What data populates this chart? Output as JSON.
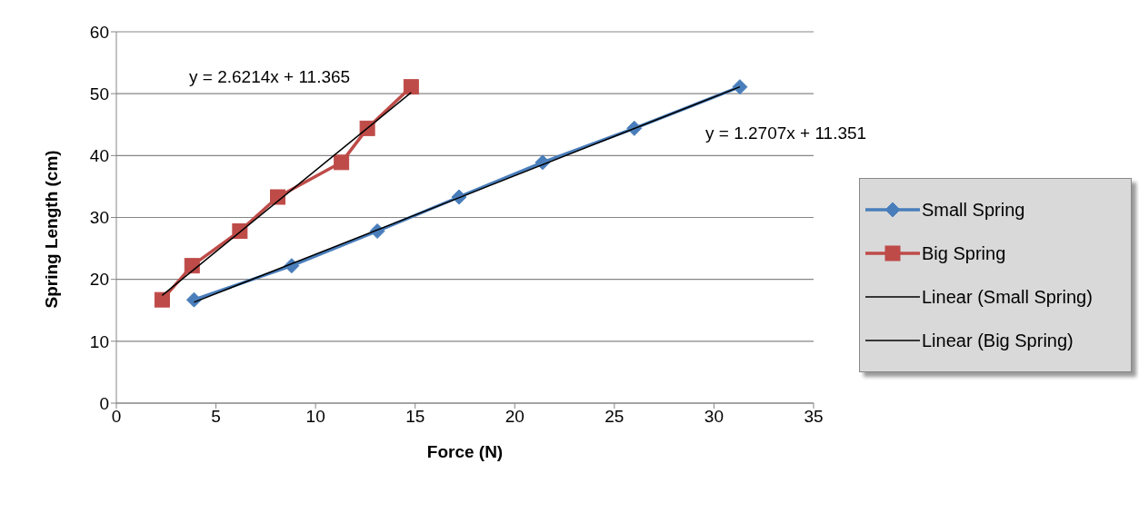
{
  "chart_data": {
    "type": "line",
    "xlabel": "Force (N)",
    "ylabel": "Spring Length (cm)",
    "xlim": [
      0,
      35
    ],
    "xticks": [
      0,
      5,
      10,
      15,
      20,
      25,
      30,
      35
    ],
    "ylim": [
      0,
      60
    ],
    "yticks": [
      0,
      10,
      20,
      30,
      40,
      50,
      60
    ],
    "grid": "y",
    "legend": "right",
    "series": [
      {
        "name": "Small Spring",
        "color": "#4a7ebb",
        "marker": "diamond",
        "x": [
          3.9,
          8.8,
          13.1,
          17.2,
          21.4,
          26.0,
          31.3
        ],
        "values": [
          16.7,
          22.2,
          27.8,
          33.3,
          38.9,
          44.4,
          51.1
        ]
      },
      {
        "name": "Big Spring",
        "color": "#be4b48",
        "marker": "square",
        "x": [
          2.3,
          3.8,
          6.2,
          8.1,
          11.3,
          12.6,
          14.8
        ],
        "values": [
          16.7,
          22.2,
          27.8,
          33.3,
          38.9,
          44.4,
          51.1
        ]
      },
      {
        "name": "Linear (Small Spring)",
        "color": "#000000",
        "marker": "none",
        "x": [
          3.9,
          31.3
        ],
        "values": [
          16.3,
          51.1
        ]
      },
      {
        "name": "Linear (Big Spring)",
        "color": "#000000",
        "marker": "none",
        "x": [
          2.3,
          14.8
        ],
        "values": [
          17.4,
          50.2
        ]
      }
    ],
    "annotations": [
      "y = 2.6214x + 11.365",
      "y = 1.2707x + 11.351"
    ]
  }
}
